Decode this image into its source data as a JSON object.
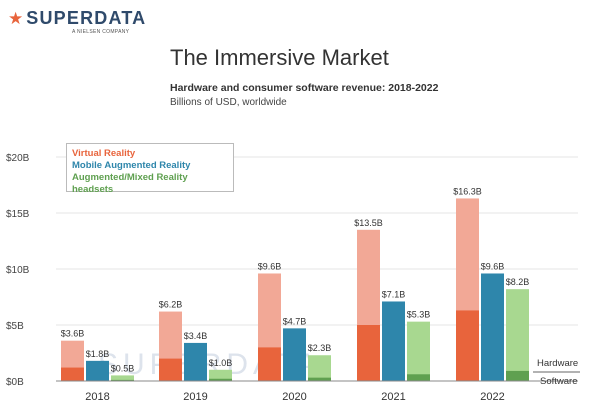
{
  "logo": {
    "star": "★",
    "name": "SUPERDATA",
    "sub": "A NIELSEN COMPANY"
  },
  "header": {
    "title": "The Immersive Market",
    "subtitle": "Hardware and consumer software revenue: 2018-2022",
    "units": "Billions of USD, worldwide"
  },
  "watermark": "SUPERDATA",
  "colors": {
    "vr_hardware": "#e8643c",
    "vr_software": "#f2a896",
    "mar_hardware": "#2e86ab",
    "mar_software": "#2e86ab",
    "ar_hardware": "#5fa050",
    "ar_software": "#a8d890",
    "vr_label": "#e8643c",
    "mar_label": "#2e86ab",
    "ar_label": "#5fa050"
  },
  "chart_data": {
    "type": "bar",
    "categories": [
      "2018",
      "2019",
      "2020",
      "2021",
      "2022"
    ],
    "yticks": [
      {
        "value": 0,
        "label": "$0B"
      },
      {
        "value": 5,
        "label": "$5B"
      },
      {
        "value": 10,
        "label": "$10B"
      },
      {
        "value": 15,
        "label": "$15B"
      },
      {
        "value": 20,
        "label": "$20B"
      }
    ],
    "ylim": [
      0,
      20
    ],
    "legend_position": "top-left",
    "series": [
      {
        "name": "Virtual Reality",
        "color_key": "vr",
        "values": [
          3.6,
          6.2,
          9.6,
          13.5,
          16.3
        ],
        "labels": [
          "$3.6B",
          "$6.2B",
          "$9.6B",
          "$13.5B",
          "$16.3B"
        ],
        "hardware": [
          1.2,
          2.0,
          3.0,
          5.0,
          6.3
        ]
      },
      {
        "name": "Mobile Augmented Reality",
        "color_key": "mar",
        "values": [
          1.8,
          3.4,
          4.7,
          7.1,
          9.6
        ],
        "labels": [
          "$1.8B",
          "$3.4B",
          "$4.7B",
          "$7.1B",
          "$9.6B"
        ],
        "hardware": [
          0,
          0,
          0,
          0,
          0
        ]
      },
      {
        "name": "Augmented/Mixed Reality headsets",
        "color_key": "ar",
        "values": [
          0.5,
          1.0,
          2.3,
          5.3,
          8.2
        ],
        "labels": [
          "$0.5B",
          "$1.0B",
          "$2.3B",
          "$5.3B",
          "$8.2B"
        ],
        "hardware": [
          0.1,
          0.2,
          0.3,
          0.6,
          0.9
        ]
      }
    ],
    "annotations": {
      "upper": "Hardware",
      "lower": "Software"
    }
  }
}
